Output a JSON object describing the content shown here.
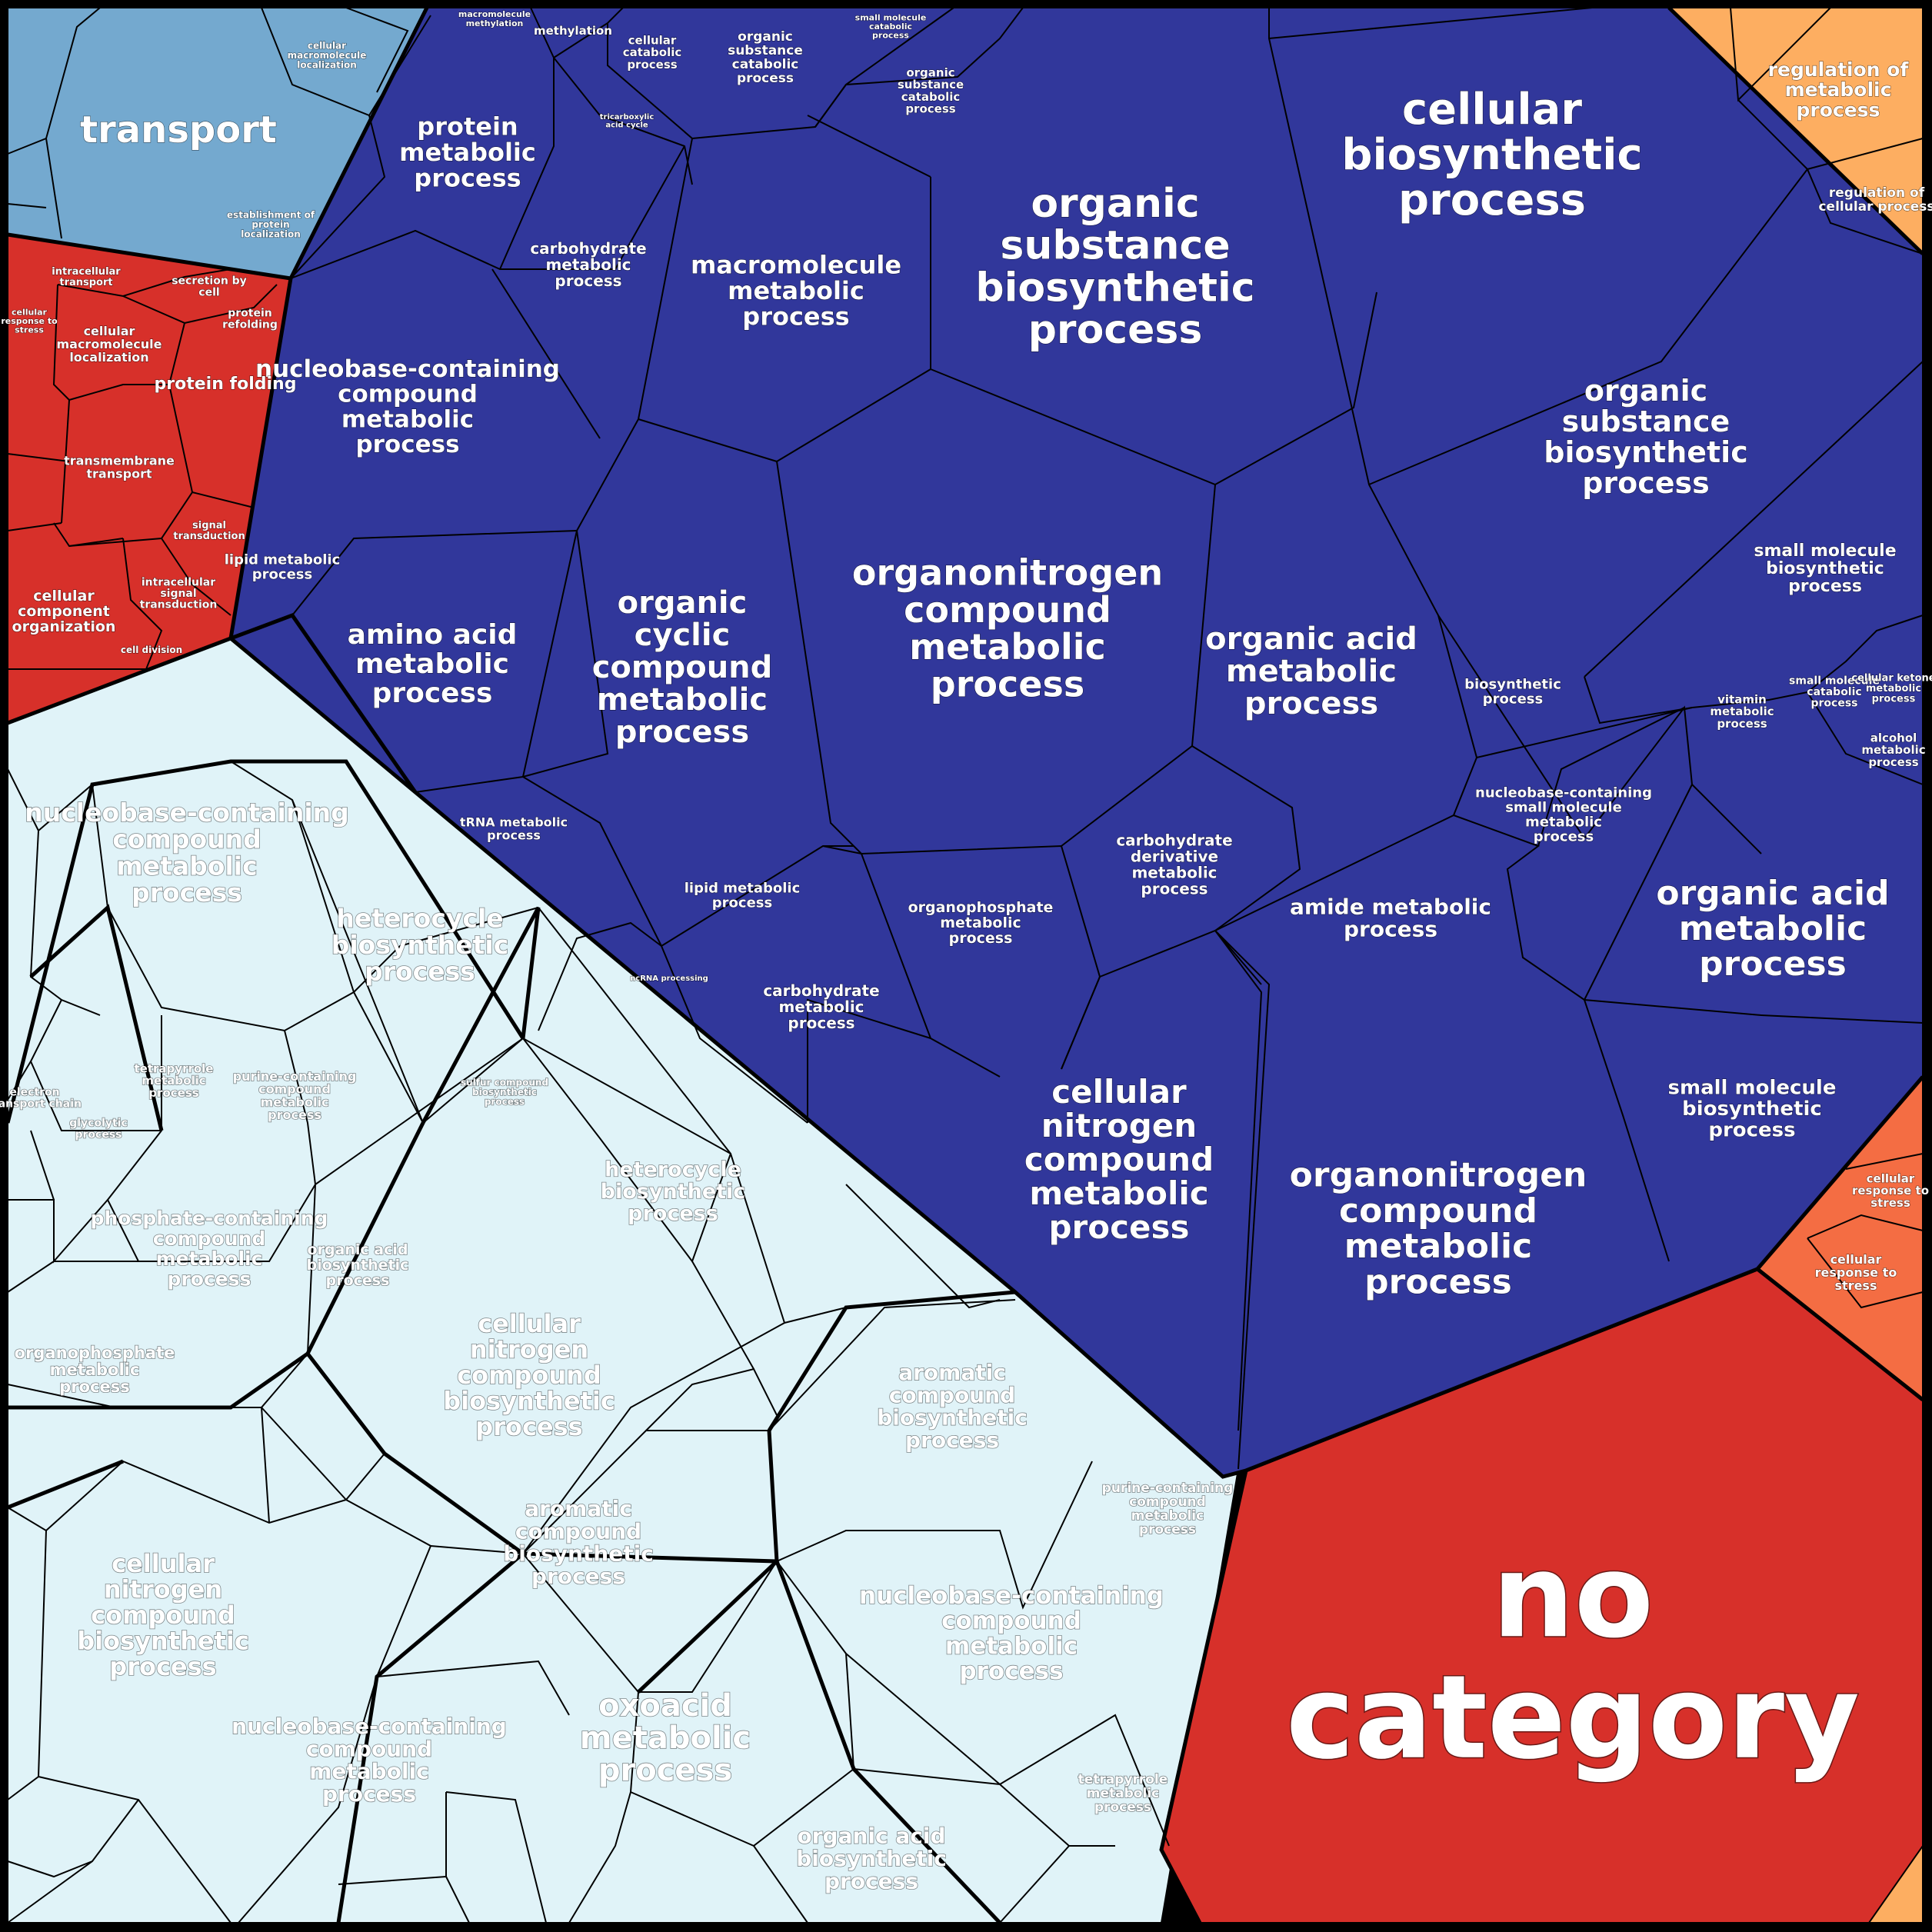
{
  "colors": {
    "transport": "#74a9cf",
    "cellular_org": "#d7302a",
    "metabolic": "#31379b",
    "metabolic_light": "#e0f3f8",
    "regulation": "#fdae61",
    "response": "#f46d43",
    "no_category": "#d7302a",
    "border": "#000000"
  },
  "groups": {
    "transport": "transport",
    "regulation": "regulation of metabolic process",
    "no_category": "no category"
  },
  "labels": {
    "cellular_biosynthetic": "cellular biosynthetic process",
    "organic_substance_biosynthetic_top": "organic substance biosynthetic process",
    "organic_substance_biosynthetic_right": "organic substance biosynthetic process",
    "organonitrogen_center": "organonitrogen compound metabolic process",
    "organonitrogen_lower": "organonitrogen compound metabolic process",
    "cellular_nitrogen": "cellular nitrogen compound metabolic process",
    "organic_acid_center": "organic acid metabolic process",
    "organic_acid_right": "organic acid metabolic process",
    "organic_cyclic": "organic cyclic compound metabolic process",
    "amino_acid": "amino acid metabolic process",
    "macromolecule_metabolic": "macromolecule metabolic process",
    "protein_metabolic": "protein metabolic process",
    "nucleobase_dark": "nucleobase-containing compound metabolic process",
    "carbohydrate_upper": "carbohydrate metabolic process",
    "carbohydrate_lower": "carbohydrate metabolic process",
    "lipid_left": "lipid metabolic process",
    "lipid_mid": "lipid metabolic process",
    "trna": "tRNA metabolic process",
    "organophosphate_dark": "organophosphate metabolic process",
    "carb_derivative": "carbohydrate derivative metabolic process",
    "amide": "amide metabolic process",
    "small_molecule_bio_1": "small molecule biosynthetic process",
    "small_molecule_bio_2": "small molecule biosynthetic process",
    "biosynthetic": "biosynthetic process",
    "nucleobase_small": "nucleobase-containing small molecule metabolic process",
    "vitamin": "vitamin metabolic process",
    "small_molecule_catabolic": "small molecule catabolic process",
    "alcohol": "alcohol metabolic process",
    "cellular_ketone": "cellular ketone metabolic process",
    "methylation": "methylation",
    "macromolecule_methylation": "macromolecule methylation",
    "cellular_catabolic": "cellular catabolic process",
    "organic_substance_catabolic_1": "organic substance catabolic process",
    "organic_substance_catabolic_2": "organic substance catabolic process",
    "small_molecule_catabolic_top": "small molecule catabolic process",
    "tca": "tricarboxylic acid cycle",
    "ncrna": "ncRNA processing",
    "nucleobase_light_1": "nucleobase-containing compound metabolic process",
    "nucleobase_light_2": "nucleobase-containing compound metabolic process",
    "nucleobase_light_3": "nucleobase-containing compound metabolic process",
    "heterocycle_bio_1": "heterocycle biosynthetic process",
    "heterocycle_bio_2": "heterocycle biosynthetic process",
    "cellular_nitrogen_bio_1": "cellular nitrogen compound biosynthetic process",
    "cellular_nitrogen_bio_2": "cellular nitrogen compound biosynthetic process",
    "aromatic_bio_1": "aromatic compound biosynthetic process",
    "aromatic_bio_2": "aromatic compound biosynthetic process",
    "oxoacid": "oxoacid metabolic process",
    "organic_acid_bio_1": "organic acid biosynthetic process",
    "organic_acid_bio_2": "organic acid biosynthetic process",
    "phosphate_containing": "phosphate-containing compound metabolic process",
    "organophosphate_light": "organophosphate metabolic process",
    "purine_1": "purine-containing compound metabolic process",
    "purine_2": "purine-containing compound metabolic process",
    "tetrapyrrole_1": "tetrapyrrole metabolic process",
    "tetrapyrrole_2": "tetrapyrrole metabolic process",
    "electron_transport": "electron transport chain",
    "glycolytic": "glycolytic process",
    "sulfur_bio": "sulfur compound biosynthetic process",
    "cellular_macro_loc": "cellular macromolecule localization",
    "protein_localization": "establishment of protein localization",
    "cellular_macro_loc_red": "cellular macromolecule localization",
    "intracellular_transport": "intracellular transport",
    "secretion": "secretion by cell",
    "protein_refolding": "protein refolding",
    "protein_folding": "protein folding",
    "transmembrane": "transmembrane transport",
    "cellular_response_stress_red": "cellular response to stress",
    "signal_transduction": "signal transduction",
    "intracellular_signal": "intracellular signal transduction",
    "cellular_component_org": "cellular component organization",
    "cell_division": "cell division",
    "regulation_cellular": "regulation of cellular process",
    "cellular_response_stress_1": "cellular response to stress",
    "cellular_response_stress_2": "cellular response to stress"
  }
}
